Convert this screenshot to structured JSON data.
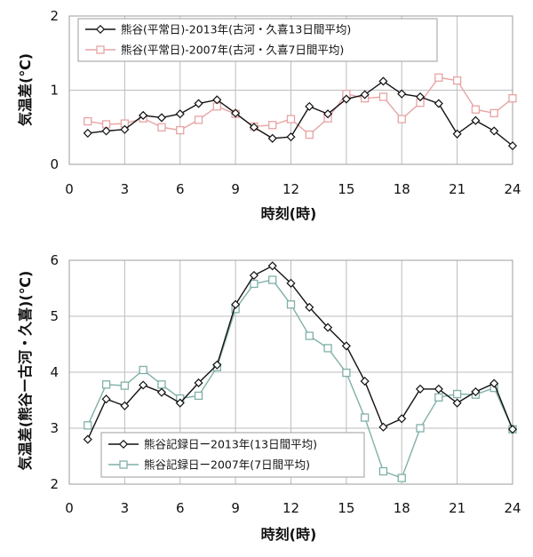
{
  "chart_data": [
    {
      "type": "line",
      "xlabel": "時刻(時)",
      "ylabel": "気温差(℃)",
      "xlim": [
        0,
        24
      ],
      "ylim": [
        0,
        2
      ],
      "xticks": [
        "0",
        "3",
        "6",
        "9",
        "12",
        "15",
        "18",
        "21",
        "24"
      ],
      "yticks": [
        "0",
        "1",
        "2"
      ],
      "grid": true,
      "legend_position": "top-left",
      "x": [
        1,
        2,
        3,
        4,
        5,
        6,
        7,
        8,
        9,
        10,
        11,
        12,
        13,
        14,
        15,
        16,
        17,
        18,
        19,
        20,
        21,
        22,
        23,
        24
      ],
      "series": [
        {
          "name": "熊谷(平常日)-2013年(古河・久喜13日間平均)",
          "color": "#111111",
          "marker": "diamond",
          "values": [
            0.42,
            0.45,
            0.47,
            0.66,
            0.63,
            0.68,
            0.82,
            0.87,
            0.69,
            0.5,
            0.35,
            0.37,
            0.78,
            0.68,
            0.88,
            0.94,
            1.12,
            0.95,
            0.91,
            0.82,
            0.41,
            0.59,
            0.45,
            0.25
          ]
        },
        {
          "name": "熊谷(平常日)-2007年(古河・久喜7日間平均)",
          "color": "#e7a4a4",
          "marker": "square",
          "values": [
            0.58,
            0.54,
            0.55,
            0.62,
            0.5,
            0.46,
            0.6,
            0.78,
            0.68,
            0.51,
            0.53,
            0.61,
            0.4,
            0.62,
            0.95,
            0.89,
            0.91,
            0.61,
            0.83,
            1.17,
            1.13,
            0.74,
            0.69,
            0.89
          ]
        }
      ]
    },
    {
      "type": "line",
      "xlabel": "時刻(時)",
      "ylabel": "気温差(熊谷ー古河・久喜)(℃)",
      "xlim": [
        0,
        24
      ],
      "ylim": [
        2,
        6
      ],
      "xticks": [
        "0",
        "3",
        "6",
        "9",
        "12",
        "15",
        "18",
        "21",
        "24"
      ],
      "yticks": [
        "2",
        "3",
        "4",
        "5",
        "6"
      ],
      "grid": true,
      "legend_position": "bottom-left",
      "x": [
        1,
        2,
        3,
        4,
        5,
        6,
        7,
        8,
        9,
        10,
        11,
        12,
        13,
        14,
        15,
        16,
        17,
        18,
        19,
        20,
        21,
        22,
        23,
        24
      ],
      "series": [
        {
          "name": "熊谷記録日ー2013年(13日間平均)",
          "color": "#111111",
          "marker": "diamond",
          "values": [
            2.8,
            3.52,
            3.4,
            3.77,
            3.64,
            3.45,
            3.81,
            4.13,
            5.21,
            5.73,
            5.9,
            5.59,
            5.16,
            4.8,
            4.47,
            3.84,
            3.02,
            3.17,
            3.7,
            3.7,
            3.45,
            3.65,
            3.8,
            2.98
          ]
        },
        {
          "name": "熊谷記録日ー2007年(7日間平均)",
          "color": "#7fb0a8",
          "marker": "square",
          "values": [
            3.05,
            3.78,
            3.76,
            4.04,
            3.78,
            3.53,
            3.58,
            4.09,
            5.13,
            5.58,
            5.65,
            5.21,
            4.65,
            4.43,
            3.99,
            3.19,
            2.23,
            2.11,
            3.0,
            3.55,
            3.61,
            3.6,
            3.72,
            2.98
          ]
        }
      ]
    }
  ]
}
